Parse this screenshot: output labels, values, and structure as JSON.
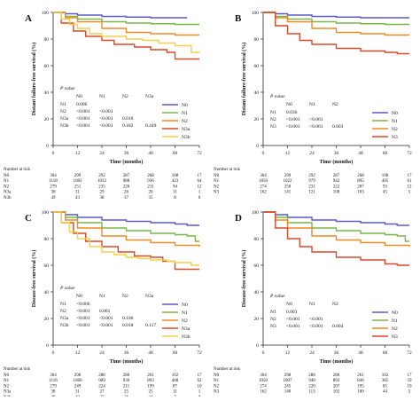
{
  "chart_data": [
    {
      "type": "line",
      "panel_label": "A",
      "ylabel": "Distant failure-free survival (%)",
      "xlabel": "Time (months)",
      "xticks": [
        "0",
        "12",
        "24",
        "36",
        "48",
        "60",
        "72"
      ],
      "yticks": [
        "0",
        "20",
        "40",
        "60",
        "80",
        "100"
      ],
      "xlim": [
        0,
        72
      ],
      "ylim": [
        0,
        100
      ],
      "legend_position": "bottom-right",
      "series": [
        {
          "name": "N0",
          "color": "#5b5bc8",
          "x": [
            0,
            6,
            12,
            24,
            36,
            48,
            60,
            66
          ],
          "y": [
            100,
            99,
            98,
            97,
            96.5,
            96,
            96,
            96
          ]
        },
        {
          "name": "N1",
          "color": "#7ab648",
          "x": [
            0,
            6,
            12,
            24,
            36,
            48,
            60,
            72
          ],
          "y": [
            100,
            97,
            95,
            93,
            92,
            91.5,
            91,
            91
          ]
        },
        {
          "name": "N2",
          "color": "#f08a24",
          "x": [
            0,
            6,
            12,
            24,
            36,
            48,
            60,
            72
          ],
          "y": [
            100,
            96,
            93,
            88,
            85,
            84,
            83,
            83
          ]
        },
        {
          "name": "N3a",
          "color": "#d84a2a",
          "x": [
            0,
            4,
            10,
            16,
            24,
            30,
            40,
            48,
            56,
            60,
            72
          ],
          "y": [
            100,
            92,
            86,
            82,
            79,
            76,
            74,
            72,
            70,
            65,
            65
          ]
        },
        {
          "name": "N3b",
          "color": "#f2d04a",
          "x": [
            0,
            4,
            8,
            12,
            18,
            24,
            36,
            44,
            52,
            60,
            68,
            72
          ],
          "y": [
            100,
            95,
            91,
            88,
            84,
            82,
            80,
            79,
            77,
            75,
            70,
            70
          ]
        }
      ],
      "pvalue_table": {
        "title": "P value",
        "col_headers": [
          "N0",
          "N1",
          "N2",
          "N3a"
        ],
        "rows": [
          {
            "label": "N1",
            "values": [
              "0.006",
              "",
              "",
              ""
            ]
          },
          {
            "label": "N2",
            "values": [
              "<0.001",
              "<0.001",
              "",
              ""
            ]
          },
          {
            "label": "N3a",
            "values": [
              "<0.001",
              "<0.001",
              "0.016",
              ""
            ]
          },
          {
            "label": "N3b",
            "values": [
              "<0.001",
              "<0.001",
              "0.182",
              "0.449"
            ]
          }
        ]
      },
      "risk_table": {
        "title": "Number at risk",
        "rows": [
          {
            "label": "N0",
            "values": [
              "304",
              "299",
              "292",
              "287",
              "268",
              "108",
              "17"
            ]
          },
          {
            "label": "N1",
            "values": [
              "1118",
              "1082",
              "1032",
              "988",
              "936",
              "423",
              "64"
            ]
          },
          {
            "label": "N2",
            "values": [
              "279",
              "251",
              "235",
              "226",
              "211",
              "94",
              "12"
            ]
          },
          {
            "label": "N3a",
            "values": [
              "38",
              "31",
              "29",
              "26",
              "26",
              "11",
              "1"
            ]
          },
          {
            "label": "N3b",
            "values": [
              "49",
              "43",
              "38",
              "37",
              "35",
              "8",
              "0"
            ]
          }
        ]
      }
    },
    {
      "type": "line",
      "panel_label": "B",
      "ylabel": "Distant failure-free survival (%)",
      "xlabel": "Time (months)",
      "xticks": [
        "0",
        "12",
        "24",
        "36",
        "48",
        "60",
        "72"
      ],
      "yticks": [
        "0",
        "20",
        "40",
        "60",
        "80",
        "100"
      ],
      "xlim": [
        0,
        72
      ],
      "ylim": [
        0,
        100
      ],
      "legend_position": "bottom-right",
      "series": [
        {
          "name": "N0",
          "color": "#5b5bc8",
          "x": [
            0,
            6,
            12,
            24,
            36,
            48,
            60,
            72
          ],
          "y": [
            100,
            99,
            98,
            97,
            96.5,
            96,
            96,
            96
          ]
        },
        {
          "name": "N1",
          "color": "#7ab648",
          "x": [
            0,
            6,
            12,
            24,
            36,
            48,
            60,
            72
          ],
          "y": [
            100,
            97,
            95,
            93,
            92,
            91.5,
            91,
            91
          ]
        },
        {
          "name": "N2",
          "color": "#f08a24",
          "x": [
            0,
            6,
            12,
            24,
            36,
            48,
            60,
            72
          ],
          "y": [
            100,
            96,
            93,
            88,
            85,
            84,
            83,
            83
          ]
        },
        {
          "name": "N3",
          "color": "#d84a2a",
          "x": [
            0,
            6,
            12,
            18,
            24,
            36,
            48,
            60,
            66,
            72
          ],
          "y": [
            100,
            90,
            84,
            79,
            76,
            73,
            71,
            70,
            69,
            69
          ]
        }
      ],
      "pvalue_table": {
        "title": "P value",
        "col_headers": [
          "N0",
          "N1",
          "N2"
        ],
        "rows": [
          {
            "label": "N1",
            "values": [
              "0.036",
              "",
              ""
            ]
          },
          {
            "label": "N2",
            "values": [
              "<0.001",
              "<0.001",
              ""
            ]
          },
          {
            "label": "N3",
            "values": [
              "<0.001",
              "<0.001",
              "0.003"
            ]
          }
        ]
      },
      "risk_table": {
        "title": "Number at risk",
        "rows": [
          {
            "label": "N0",
            "values": [
              "304",
              "299",
              "292",
              "287",
              "268",
              "108",
              "17"
            ]
          },
          {
            "label": "N1",
            "values": [
              "1850",
              "1022",
              "979",
              "942",
              "895",
              "405",
              "61"
            ]
          },
          {
            "label": "N2",
            "values": [
              "274",
              "250",
              "231",
              "222",
              "207",
              "93",
              "12"
            ]
          },
          {
            "label": "N3",
            "values": [
              "162",
              "141",
              "121",
              "108",
              "103",
              "45",
              "5"
            ]
          }
        ]
      }
    },
    {
      "type": "line",
      "panel_label": "C",
      "ylabel": "Disease-free survival (%)",
      "xlabel": "Time (months)",
      "xticks": [
        "0",
        "12",
        "24",
        "36",
        "48",
        "60",
        "72"
      ],
      "yticks": [
        "0",
        "20",
        "40",
        "60",
        "80",
        "100"
      ],
      "xlim": [
        0,
        72
      ],
      "ylim": [
        0,
        100
      ],
      "legend_position": "bottom-right",
      "series": [
        {
          "name": "N0",
          "color": "#5b5bc8",
          "x": [
            0,
            6,
            12,
            24,
            36,
            48,
            60,
            66,
            72
          ],
          "y": [
            100,
            98,
            96,
            94,
            93,
            92,
            91,
            90,
            90
          ]
        },
        {
          "name": "N1",
          "color": "#7ab648",
          "x": [
            0,
            6,
            12,
            24,
            36,
            48,
            60,
            66,
            70,
            72
          ],
          "y": [
            100,
            96,
            92,
            88,
            86,
            84,
            83,
            82,
            78,
            78
          ]
        },
        {
          "name": "N2",
          "color": "#f08a24",
          "x": [
            0,
            6,
            12,
            24,
            36,
            48,
            60,
            72
          ],
          "y": [
            100,
            94,
            88,
            82,
            79,
            77,
            75,
            74
          ]
        },
        {
          "name": "N3a",
          "color": "#d84a2a",
          "x": [
            0,
            4,
            10,
            16,
            24,
            32,
            40,
            48,
            54,
            60,
            72
          ],
          "y": [
            100,
            92,
            84,
            78,
            74,
            70,
            67,
            66,
            63,
            57,
            57
          ]
        },
        {
          "name": "N3b",
          "color": "#f2d04a",
          "x": [
            0,
            4,
            8,
            12,
            18,
            24,
            30,
            36,
            42,
            48,
            56,
            60,
            68,
            72
          ],
          "y": [
            100,
            92,
            85,
            80,
            74,
            70,
            68,
            66,
            65,
            64,
            63,
            62,
            60,
            60
          ]
        }
      ],
      "pvalue_table": {
        "title": "P value",
        "col_headers": [
          "N0",
          "N1",
          "N2",
          "N3a"
        ],
        "rows": [
          {
            "label": "N1",
            "values": [
              "<0.006",
              "",
              "",
              ""
            ]
          },
          {
            "label": "N2",
            "values": [
              "<0.001",
              "0.001",
              "",
              ""
            ]
          },
          {
            "label": "N3a",
            "values": [
              "<0.001",
              "<0.001",
              "0.106",
              ""
            ]
          },
          {
            "label": "N3b",
            "values": [
              "<0.001",
              "<0.001",
              "0.018",
              "0.117"
            ]
          }
        ]
      },
      "risk_table": {
        "title": "Number at risk",
        "rows": [
          {
            "label": "N0",
            "values": [
              "304",
              "298",
              "288",
              "280",
              "261",
              "102",
              "17"
            ]
          },
          {
            "label": "N1",
            "values": [
              "1116",
              "1066",
              "989",
              "936",
              "893",
              "408",
              "62"
            ]
          },
          {
            "label": "N2",
            "values": [
              "279",
              "249",
              "224",
              "211",
              "199",
              "87",
              "10"
            ]
          },
          {
            "label": "N3a",
            "values": [
              "38",
              "31",
              "27",
              "25",
              "25",
              "11",
              "1"
            ]
          },
          {
            "label": "N3b",
            "values": [
              "49",
              "42",
              "37",
              "36",
              "34",
              "7",
              "0"
            ]
          }
        ]
      }
    },
    {
      "type": "line",
      "panel_label": "D",
      "ylabel": "Disease-free survival (%)",
      "xlabel": "Time (months)",
      "xticks": [
        "0",
        "12",
        "24",
        "36",
        "48",
        "60",
        "72"
      ],
      "yticks": [
        "0",
        "20",
        "40",
        "60",
        "80",
        "100"
      ],
      "xlim": [
        0,
        72
      ],
      "ylim": [
        0,
        100
      ],
      "legend_position": "bottom-right",
      "series": [
        {
          "name": "N0",
          "color": "#5b5bc8",
          "x": [
            0,
            6,
            12,
            24,
            36,
            48,
            60,
            66,
            72
          ],
          "y": [
            100,
            98,
            96,
            94,
            93,
            92,
            91,
            90,
            90
          ]
        },
        {
          "name": "N1",
          "color": "#7ab648",
          "x": [
            0,
            6,
            12,
            24,
            36,
            48,
            60,
            66,
            70,
            72
          ],
          "y": [
            100,
            96,
            92,
            88,
            86,
            84,
            83,
            82,
            78,
            78
          ]
        },
        {
          "name": "N2",
          "color": "#f08a24",
          "x": [
            0,
            6,
            12,
            24,
            36,
            48,
            60,
            72
          ],
          "y": [
            100,
            94,
            88,
            82,
            79,
            77,
            75,
            74
          ]
        },
        {
          "name": "N3",
          "color": "#d84a2a",
          "x": [
            0,
            6,
            12,
            18,
            24,
            36,
            48,
            60,
            66,
            72
          ],
          "y": [
            100,
            88,
            80,
            74,
            70,
            66,
            64,
            61,
            60,
            60
          ]
        }
      ],
      "pvalue_table": {
        "title": "P value",
        "col_headers": [
          "N0",
          "N1",
          "N2"
        ],
        "rows": [
          {
            "label": "N1",
            "values": [
              "0.003",
              "",
              ""
            ]
          },
          {
            "label": "N2",
            "values": [
              "<0.001",
              "<0.001",
              ""
            ]
          },
          {
            "label": "N3",
            "values": [
              "<0.001",
              "<0.001",
              "0.004"
            ]
          }
        ]
      },
      "risk_table": {
        "title": "Number at risk",
        "rows": [
          {
            "label": "N0",
            "values": [
              "304",
              "298",
              "288",
              "280",
              "261",
              "102",
              "17"
            ]
          },
          {
            "label": "N1",
            "values": [
              "1050",
              "1007",
              "940",
              "893",
              "846",
              "385",
              "59"
            ]
          },
          {
            "label": "N2",
            "values": [
              "274",
              "245",
              "220",
              "207",
              "195",
              "85",
              "10"
            ]
          },
          {
            "label": "N3",
            "values": [
              "162",
              "140",
              "113",
              "102",
              "100",
              "44",
              "5"
            ]
          }
        ]
      }
    }
  ]
}
